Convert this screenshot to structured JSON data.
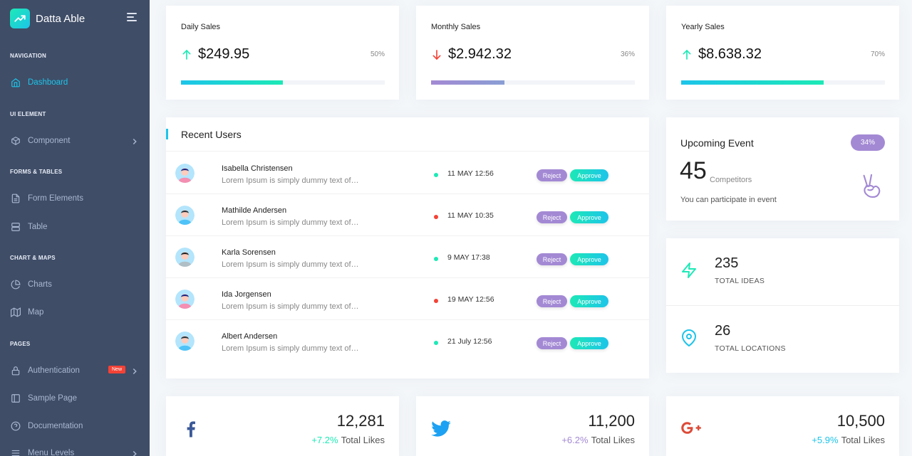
{
  "brand": {
    "title": "Datta Able"
  },
  "colors": {
    "accent": "#1dc4e9",
    "green": "#1de9b6",
    "purple": "#a389d4",
    "red": "#f44236",
    "sidebar": "#3f4d67"
  },
  "sidebar": {
    "captions": {
      "navigation": "NAVIGATION",
      "ui_element": "UI ELEMENT",
      "forms_tables": "FORMS & TABLES",
      "chart_maps": "CHART & MAPS",
      "pages": "PAGES"
    },
    "items": {
      "dashboard": "Dashboard",
      "component": "Component",
      "form_elements": "Form Elements",
      "table": "Table",
      "charts": "Charts",
      "map": "Map",
      "authentication": "Authentication",
      "sample_page": "Sample Page",
      "documentation": "Documentation",
      "menu_levels": "Menu Levels"
    },
    "badge_new": "New"
  },
  "sales": [
    {
      "title": "Daily Sales",
      "amount": "$249.95",
      "percent": "50%",
      "trend": "up",
      "progress": 0.5,
      "icon": "arrow-up-icon"
    },
    {
      "title": "Monthly Sales",
      "amount": "$2.942.32",
      "percent": "36%",
      "trend": "down",
      "progress": 0.36,
      "icon": "arrow-down-icon"
    },
    {
      "title": "Yearly Sales",
      "amount": "$8.638.32",
      "percent": "70%",
      "trend": "up",
      "progress": 0.7,
      "icon": "arrow-up-icon"
    }
  ],
  "recent_users": {
    "title": "Recent Users",
    "reject_label": "Reject",
    "approve_label": "Approve",
    "rows": [
      {
        "name": "Isabella Christensen",
        "desc": "Lorem Ipsum is simply dummy text of…",
        "date": "11 MAY 12:56",
        "status": "green"
      },
      {
        "name": "Mathilde Andersen",
        "desc": "Lorem Ipsum is simply dummy text of…",
        "date": "11 MAY 10:35",
        "status": "red"
      },
      {
        "name": "Karla Sorensen",
        "desc": "Lorem Ipsum is simply dummy text of…",
        "date": "9 MAY 17:38",
        "status": "green"
      },
      {
        "name": "Ida Jorgensen",
        "desc": "Lorem Ipsum is simply dummy text of…",
        "date": "19 MAY 12:56",
        "status": "red"
      },
      {
        "name": "Albert Andersen",
        "desc": "Lorem Ipsum is simply dummy text of…",
        "date": "21 July 12:56",
        "status": "green"
      }
    ]
  },
  "event": {
    "title": "Upcoming Event",
    "badge": "34%",
    "number": "45",
    "unit": "Competitors",
    "desc": "You can participate in event",
    "icon": "victory-hand-icon"
  },
  "stats": [
    {
      "value": "235",
      "label": "TOTAL IDEAS",
      "icon": "zap-icon"
    },
    {
      "value": "26",
      "label": "TOTAL LOCATIONS",
      "icon": "map-pin-icon"
    }
  ],
  "social": [
    {
      "network": "facebook",
      "value": "12,281",
      "pct": "+7.2%",
      "label": "Total Likes",
      "icon": "facebook-icon"
    },
    {
      "network": "twitter",
      "value": "11,200",
      "pct": "+6.2%",
      "label": "Total Likes",
      "icon": "twitter-icon"
    },
    {
      "network": "google-plus",
      "value": "10,500",
      "pct": "+5.9%",
      "label": "Total Likes",
      "icon": "google-plus-icon"
    }
  ]
}
